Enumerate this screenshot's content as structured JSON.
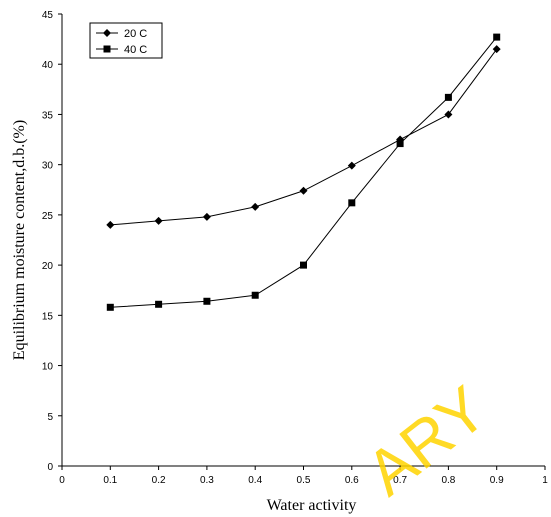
{
  "chart_data": {
    "type": "line",
    "title": "",
    "xlabel": "Water activity",
    "ylabel": "Equilibrium moisture content,d.b.(%)",
    "xlim": [
      0,
      1
    ],
    "ylim": [
      0,
      45
    ],
    "xticks": [
      "0",
      "0.1",
      "0.2",
      "0.3",
      "0.4",
      "0.5",
      "0.6",
      "0.7",
      "0.8",
      "0.9",
      "1"
    ],
    "yticks": [
      "0",
      "5",
      "10",
      "15",
      "20",
      "25",
      "30",
      "35",
      "40",
      "45"
    ],
    "grid": false,
    "legend_position": "top-left",
    "series": [
      {
        "name": "20 C",
        "marker": "diamond",
        "x": [
          0.1,
          0.2,
          0.3,
          0.4,
          0.5,
          0.6,
          0.7,
          0.8,
          0.9
        ],
        "y": [
          24.0,
          24.4,
          24.8,
          25.8,
          27.4,
          29.9,
          32.5,
          35.0,
          41.5
        ]
      },
      {
        "name": "40 C",
        "marker": "square",
        "x": [
          0.1,
          0.2,
          0.3,
          0.4,
          0.5,
          0.6,
          0.7,
          0.8,
          0.9
        ],
        "y": [
          15.8,
          16.1,
          16.4,
          17.0,
          20.0,
          26.2,
          32.1,
          36.7,
          42.7
        ]
      }
    ],
    "watermark": "ARY"
  }
}
